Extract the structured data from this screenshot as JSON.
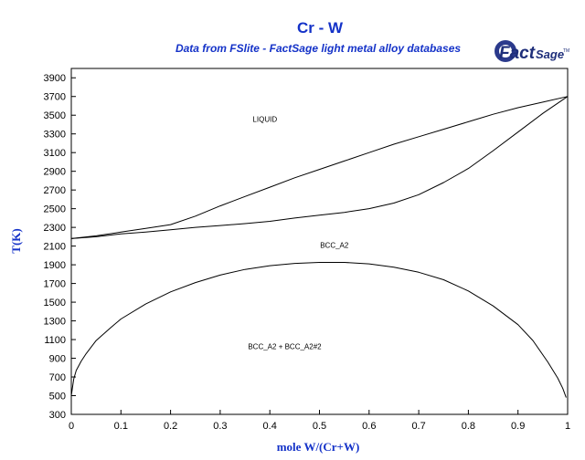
{
  "chart_data": {
    "type": "line",
    "title": "Cr - W",
    "subtitle": "Data from FSlite - FactSage light metal alloy databases",
    "xlabel": "mole W/(Cr+W)",
    "ylabel": "T(K)",
    "xlim": [
      0,
      1
    ],
    "ylim": [
      300,
      4000
    ],
    "x_ticks": [
      0,
      0.1,
      0.2,
      0.3,
      0.4,
      0.5,
      0.6,
      0.7,
      0.8,
      0.9,
      1
    ],
    "y_ticks": [
      300,
      500,
      700,
      900,
      1100,
      1300,
      1500,
      1700,
      1900,
      2100,
      2300,
      2500,
      2700,
      2900,
      3100,
      3300,
      3500,
      3700,
      3900
    ],
    "grid": false,
    "region_labels": [
      {
        "text": "LIQUID",
        "x": 0.39,
        "T": 3430
      },
      {
        "text": "BCC_A2",
        "x": 0.53,
        "T": 2080
      },
      {
        "text": "BCC_A2 + BCC_A2#2",
        "x": 0.43,
        "T": 1000
      }
    ],
    "series": [
      {
        "values": [
          [
            0,
            2180
          ],
          [
            0.05,
            2210
          ],
          [
            0.1,
            2250
          ],
          [
            0.15,
            2290
          ],
          [
            0.2,
            2330
          ],
          [
            0.25,
            2420
          ],
          [
            0.3,
            2530
          ],
          [
            0.35,
            2630
          ],
          [
            0.4,
            2730
          ],
          [
            0.45,
            2830
          ],
          [
            0.5,
            2920
          ],
          [
            0.55,
            3010
          ],
          [
            0.6,
            3100
          ],
          [
            0.65,
            3190
          ],
          [
            0.7,
            3270
          ],
          [
            0.75,
            3350
          ],
          [
            0.8,
            3430
          ],
          [
            0.85,
            3510
          ],
          [
            0.9,
            3580
          ],
          [
            0.95,
            3640
          ],
          [
            1,
            3700
          ]
        ]
      },
      {
        "values": [
          [
            0,
            2180
          ],
          [
            0.05,
            2200
          ],
          [
            0.1,
            2230
          ],
          [
            0.15,
            2250
          ],
          [
            0.2,
            2275
          ],
          [
            0.25,
            2300
          ],
          [
            0.3,
            2320
          ],
          [
            0.35,
            2340
          ],
          [
            0.4,
            2365
          ],
          [
            0.45,
            2400
          ],
          [
            0.5,
            2430
          ],
          [
            0.55,
            2460
          ],
          [
            0.6,
            2500
          ],
          [
            0.65,
            2560
          ],
          [
            0.7,
            2650
          ],
          [
            0.75,
            2780
          ],
          [
            0.8,
            2930
          ],
          [
            0.85,
            3120
          ],
          [
            0.9,
            3320
          ],
          [
            0.95,
            3520
          ],
          [
            1,
            3700
          ]
        ]
      },
      {
        "values": [
          [
            0.0,
            500
          ],
          [
            0.005,
            680
          ],
          [
            0.01,
            770
          ],
          [
            0.02,
            870
          ],
          [
            0.03,
            950
          ],
          [
            0.05,
            1090
          ],
          [
            0.08,
            1230
          ],
          [
            0.1,
            1320
          ],
          [
            0.15,
            1480
          ],
          [
            0.2,
            1610
          ],
          [
            0.25,
            1710
          ],
          [
            0.3,
            1790
          ],
          [
            0.35,
            1850
          ],
          [
            0.4,
            1890
          ],
          [
            0.45,
            1915
          ],
          [
            0.5,
            1925
          ],
          [
            0.55,
            1925
          ],
          [
            0.6,
            1910
          ],
          [
            0.65,
            1875
          ],
          [
            0.7,
            1820
          ],
          [
            0.75,
            1740
          ],
          [
            0.8,
            1620
          ],
          [
            0.85,
            1460
          ],
          [
            0.9,
            1260
          ],
          [
            0.93,
            1090
          ],
          [
            0.96,
            860
          ],
          [
            0.98,
            690
          ],
          [
            0.99,
            580
          ],
          [
            0.997,
            480
          ]
        ]
      }
    ]
  },
  "branding": {
    "logo_text": "FactSage",
    "logo_mark": "TM"
  }
}
